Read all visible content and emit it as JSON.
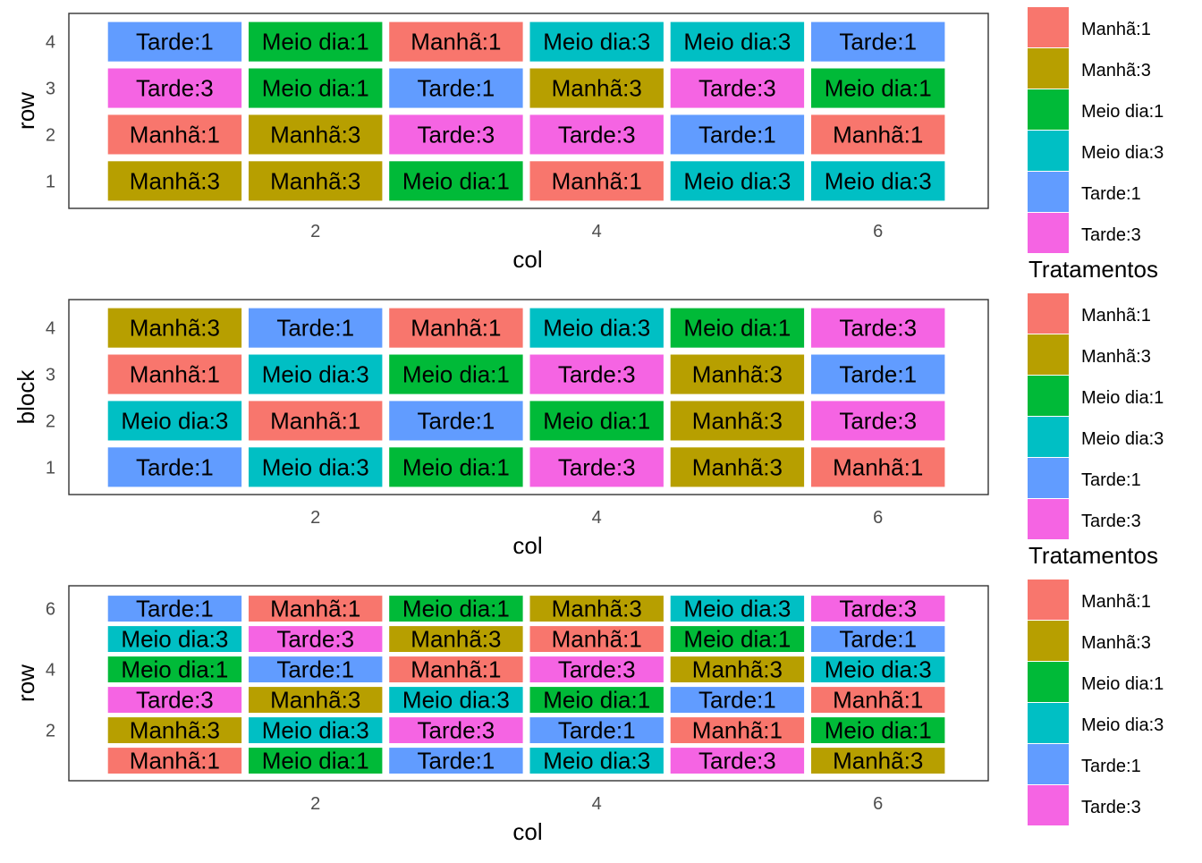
{
  "colors": {
    "Manhã:1": "#F8766D",
    "Manhã:3": "#B79F00",
    "Meio dia:1": "#00BA38",
    "Meio dia:3": "#00BFC4",
    "Tarde:1": "#619CFF",
    "Tarde:3": "#F564E3"
  },
  "legends": [
    {
      "title": "",
      "entries": [
        "Manhã:1",
        "Manhã:3",
        "Meio dia:1",
        "Meio dia:3",
        "Tarde:1",
        "Tarde:3"
      ]
    },
    {
      "title": "Tratamentos",
      "entries": [
        "Manhã:1",
        "Manhã:3",
        "Meio dia:1",
        "Meio dia:3",
        "Tarde:1",
        "Tarde:3"
      ]
    },
    {
      "title": "Tratamentos",
      "entries": [
        "Manhã:1",
        "Manhã:3",
        "Meio dia:1",
        "Meio dia:3",
        "Tarde:1",
        "Tarde:3"
      ]
    }
  ],
  "chart_data": [
    {
      "type": "heatmap",
      "xlabel": "col",
      "ylabel": "row",
      "xlim": [
        0.5,
        6.5
      ],
      "ylim": [
        0.5,
        4.5
      ],
      "x_ticks": [
        2,
        4,
        6
      ],
      "y_ticks": [
        1,
        2,
        3,
        4
      ],
      "rows": [
        {
          "y": 4,
          "cells": [
            "Tarde:1",
            "Meio dia:1",
            "Manhã:1",
            "Meio dia:3",
            "Meio dia:3",
            "Tarde:1"
          ]
        },
        {
          "y": 3,
          "cells": [
            "Tarde:3",
            "Meio dia:1",
            "Tarde:1",
            "Manhã:3",
            "Tarde:3",
            "Meio dia:1"
          ]
        },
        {
          "y": 2,
          "cells": [
            "Manhã:1",
            "Manhã:3",
            "Tarde:3",
            "Tarde:3",
            "Tarde:1",
            "Manhã:1"
          ]
        },
        {
          "y": 1,
          "cells": [
            "Manhã:3",
            "Manhã:3",
            "Meio dia:1",
            "Manhã:1",
            "Meio dia:3",
            "Meio dia:3"
          ]
        }
      ]
    },
    {
      "type": "heatmap",
      "xlabel": "col",
      "ylabel": "block",
      "xlim": [
        0.5,
        6.5
      ],
      "ylim": [
        0.5,
        4.5
      ],
      "x_ticks": [
        2,
        4,
        6
      ],
      "y_ticks": [
        1,
        2,
        3,
        4
      ],
      "rows": [
        {
          "y": 4,
          "cells": [
            "Manhã:3",
            "Tarde:1",
            "Manhã:1",
            "Meio dia:3",
            "Meio dia:1",
            "Tarde:3"
          ]
        },
        {
          "y": 3,
          "cells": [
            "Manhã:1",
            "Meio dia:3",
            "Meio dia:1",
            "Tarde:3",
            "Manhã:3",
            "Tarde:1"
          ]
        },
        {
          "y": 2,
          "cells": [
            "Meio dia:3",
            "Manhã:1",
            "Tarde:1",
            "Meio dia:1",
            "Manhã:3",
            "Tarde:3"
          ]
        },
        {
          "y": 1,
          "cells": [
            "Tarde:1",
            "Meio dia:3",
            "Meio dia:1",
            "Tarde:3",
            "Manhã:3",
            "Manhã:1"
          ]
        }
      ]
    },
    {
      "type": "heatmap",
      "xlabel": "col",
      "ylabel": "row",
      "xlim": [
        0.5,
        6.5
      ],
      "ylim": [
        0.5,
        6.5
      ],
      "x_ticks": [
        2,
        4,
        6
      ],
      "y_ticks": [
        2,
        4,
        6
      ],
      "rows": [
        {
          "y": 6,
          "cells": [
            "Tarde:1",
            "Manhã:1",
            "Meio dia:1",
            "Manhã:3",
            "Meio dia:3",
            "Tarde:3"
          ]
        },
        {
          "y": 5,
          "cells": [
            "Meio dia:3",
            "Tarde:3",
            "Manhã:3",
            "Manhã:1",
            "Meio dia:1",
            "Tarde:1"
          ]
        },
        {
          "y": 4,
          "cells": [
            "Meio dia:1",
            "Tarde:1",
            "Manhã:1",
            "Tarde:3",
            "Manhã:3",
            "Meio dia:3"
          ]
        },
        {
          "y": 3,
          "cells": [
            "Tarde:3",
            "Manhã:3",
            "Meio dia:3",
            "Meio dia:1",
            "Tarde:1",
            "Manhã:1"
          ]
        },
        {
          "y": 2,
          "cells": [
            "Manhã:3",
            "Meio dia:3",
            "Tarde:3",
            "Tarde:1",
            "Manhã:1",
            "Meio dia:1"
          ]
        },
        {
          "y": 1,
          "cells": [
            "Manhã:1",
            "Meio dia:1",
            "Tarde:1",
            "Meio dia:3",
            "Tarde:3",
            "Manhã:3"
          ]
        }
      ]
    }
  ]
}
